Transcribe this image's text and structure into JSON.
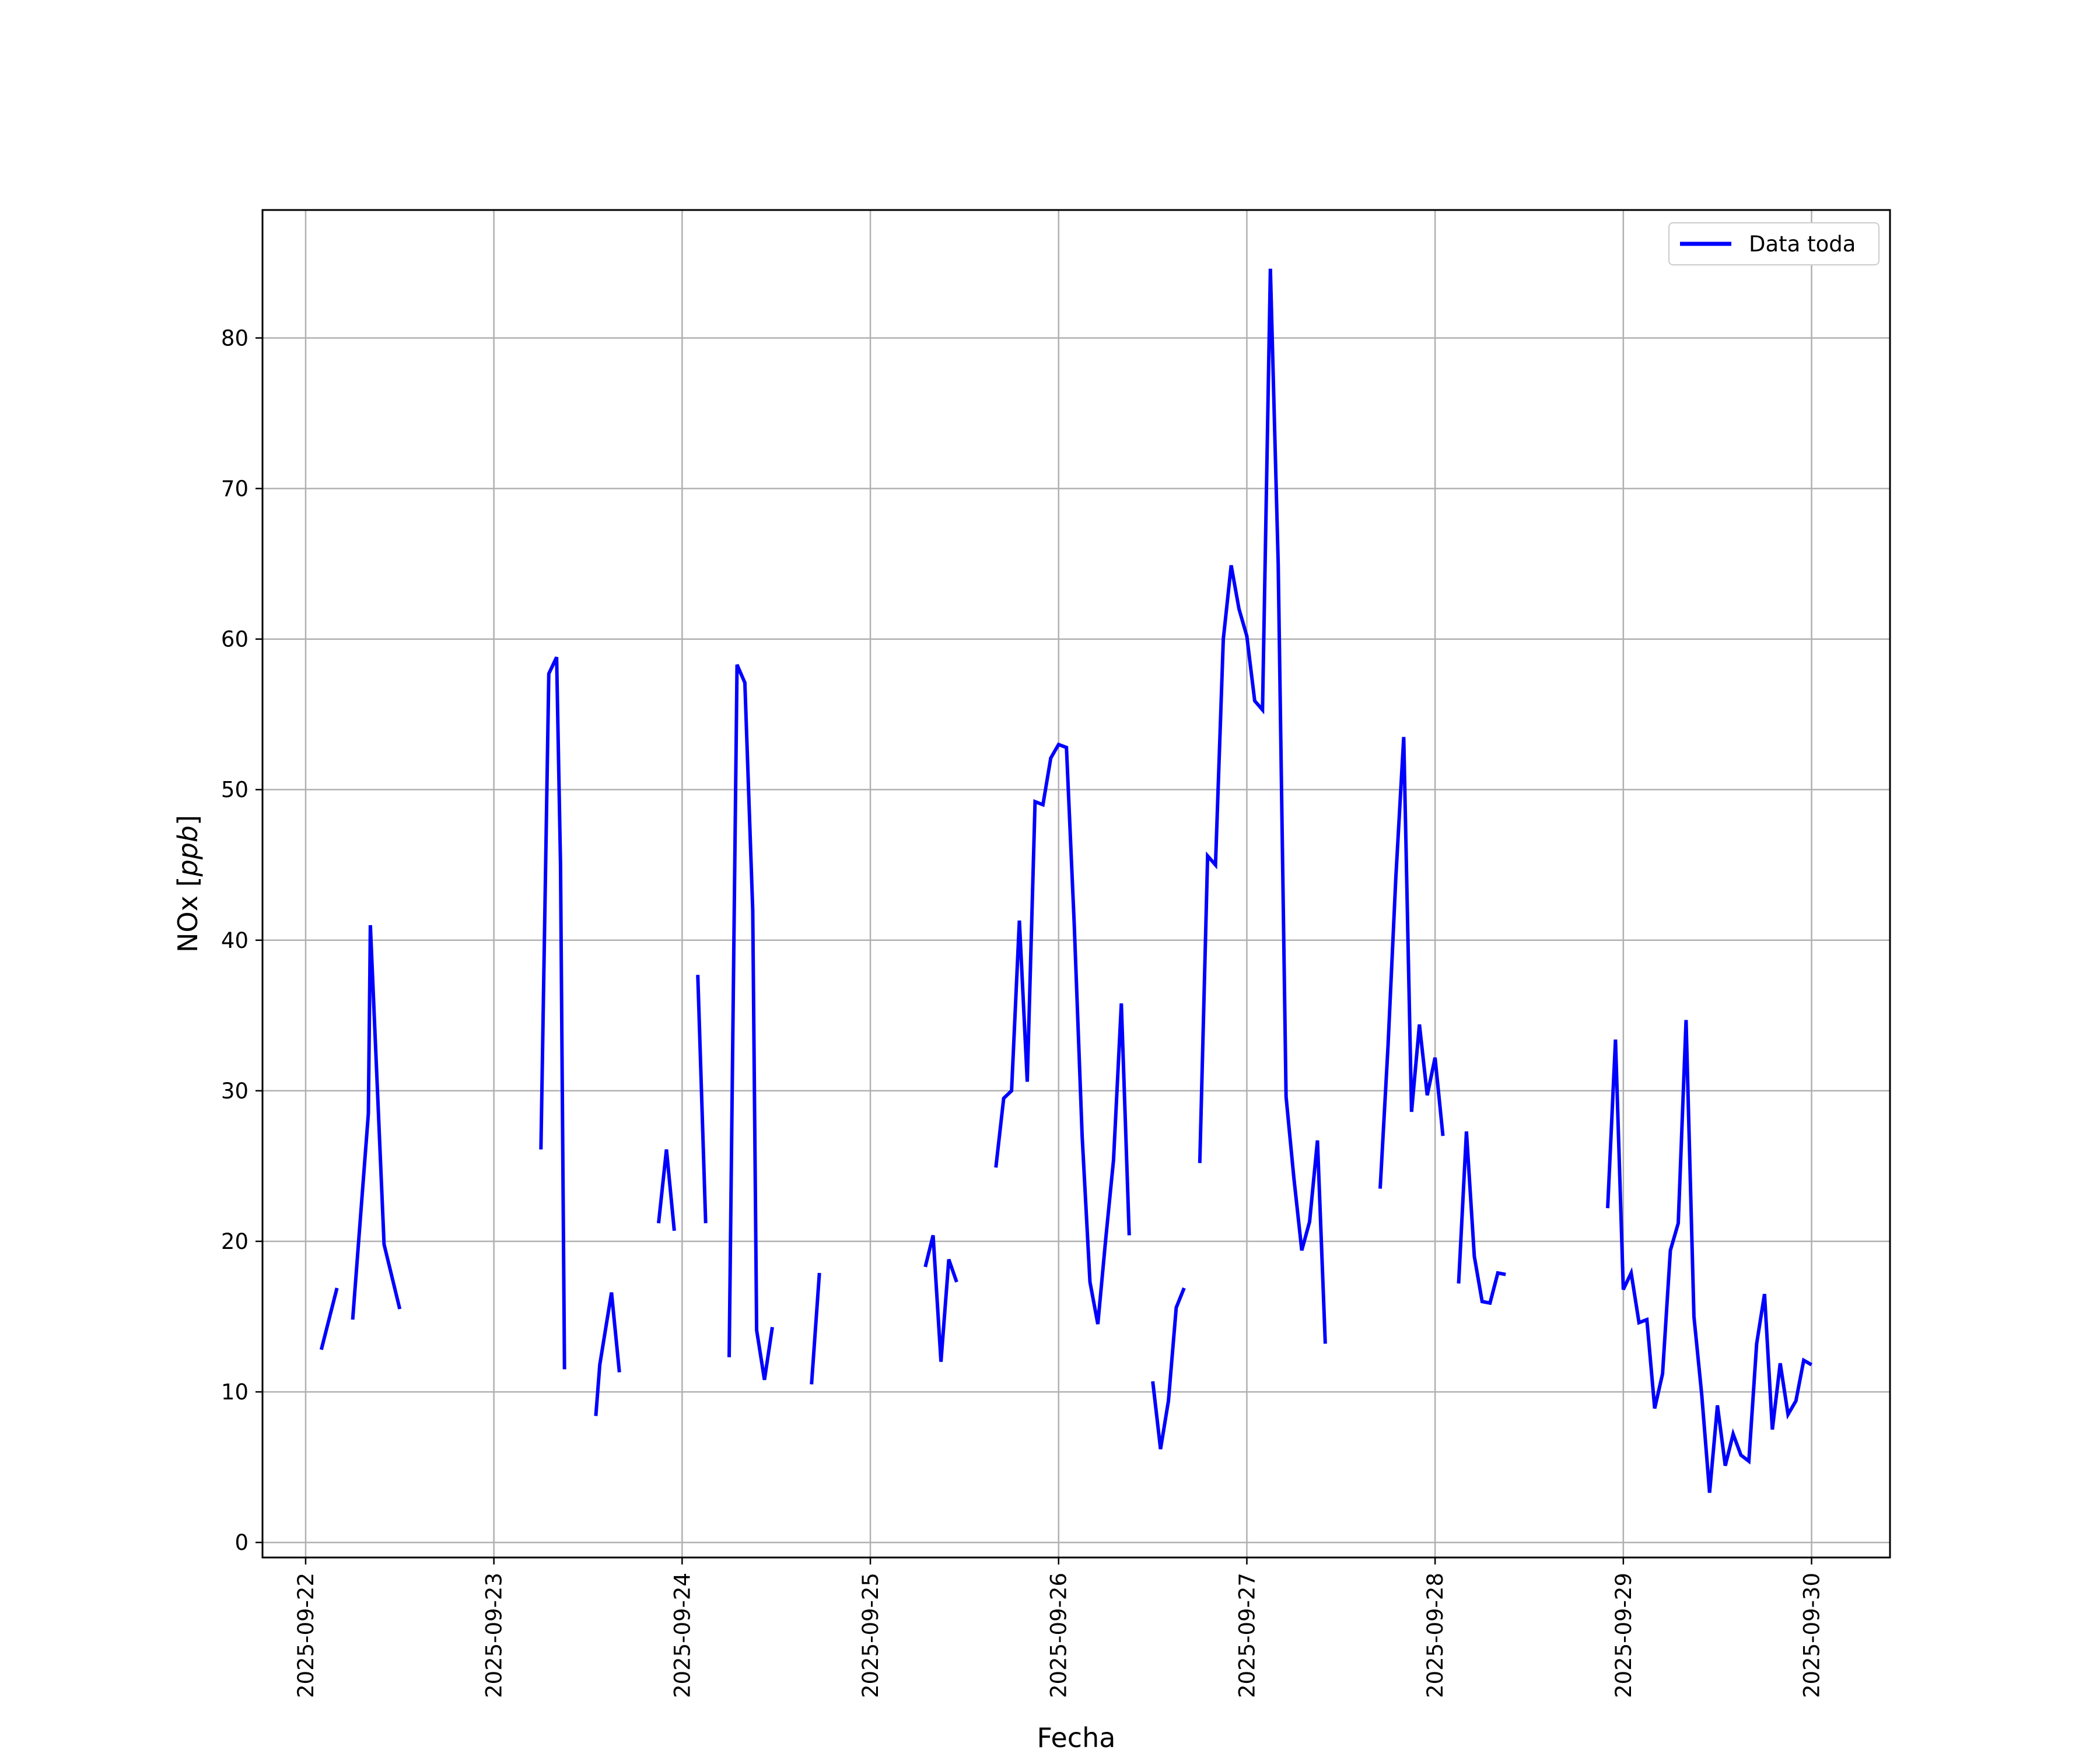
{
  "chart_data": {
    "type": "line",
    "xlabel": "Fecha",
    "ylabel": "NOx [ppb]",
    "ylabel_main": "NOx [",
    "ylabel_unit": "ppb",
    "ylabel_close": "]",
    "xlim": [
      "2025-09-21 18:30",
      "2025-09-30 10:00"
    ],
    "ylim": [
      -1,
      88.5
    ],
    "x_ticks": [
      "2025-09-22",
      "2025-09-23",
      "2025-09-24",
      "2025-09-25",
      "2025-09-26",
      "2025-09-27",
      "2025-09-28",
      "2025-09-29",
      "2025-09-30"
    ],
    "y_ticks": [
      0,
      10,
      20,
      30,
      40,
      50,
      60,
      70,
      80
    ],
    "grid": true,
    "legend_position": "top-right",
    "line_color": "#0000ff",
    "series": [
      {
        "name": "Data toda",
        "segments": [
          [
            [
              "2025-09-22 02:00",
              12.8
            ],
            [
              "2025-09-22 04:00",
              16.9
            ]
          ],
          [
            [
              "2025-09-22 06:00",
              14.8
            ],
            [
              "2025-09-22 08:00",
              28.5
            ],
            [
              "2025-09-22 08:15",
              41.0
            ],
            [
              "2025-09-22 10:00",
              19.8
            ],
            [
              "2025-09-22 12:00",
              15.5
            ]
          ],
          [
            [
              "2025-09-23 06:00",
              26.1
            ],
            [
              "2025-09-23 07:00",
              57.7
            ],
            [
              "2025-09-23 08:00",
              58.8
            ],
            [
              "2025-09-23 08:30",
              45.0
            ],
            [
              "2025-09-23 09:00",
              11.5
            ]
          ],
          [
            [
              "2025-09-23 13:00",
              8.4
            ],
            [
              "2025-09-23 13:30",
              11.8
            ],
            [
              "2025-09-23 15:00",
              16.6
            ],
            [
              "2025-09-23 16:00",
              11.3
            ]
          ],
          [
            [
              "2025-09-23 21:00",
              21.2
            ],
            [
              "2025-09-23 22:00",
              26.1
            ],
            [
              "2025-09-23 23:00",
              20.7
            ]
          ],
          [
            [
              "2025-09-24 02:00",
              37.7
            ],
            [
              "2025-09-24 03:00",
              21.2
            ]
          ],
          [
            [
              "2025-09-24 06:00",
              12.3
            ],
            [
              "2025-09-24 07:00",
              58.3
            ],
            [
              "2025-09-24 08:00",
              57.1
            ],
            [
              "2025-09-24 09:00",
              42.0
            ],
            [
              "2025-09-24 09:30",
              14.1
            ],
            [
              "2025-09-24 10:30",
              10.8
            ],
            [
              "2025-09-24 11:30",
              14.3
            ]
          ],
          [
            [
              "2025-09-24 16:30",
              10.5
            ],
            [
              "2025-09-24 17:30",
              17.9
            ]
          ],
          [
            [
              "2025-09-25 07:00",
              18.3
            ],
            [
              "2025-09-25 08:00",
              20.4
            ],
            [
              "2025-09-25 09:00",
              12.0
            ],
            [
              "2025-09-25 10:00",
              18.8
            ],
            [
              "2025-09-25 11:00",
              17.3
            ]
          ],
          [
            [
              "2025-09-25 16:00",
              24.9
            ],
            [
              "2025-09-25 17:00",
              29.5
            ],
            [
              "2025-09-25 18:00",
              30.0
            ],
            [
              "2025-09-25 19:00",
              41.3
            ],
            [
              "2025-09-25 20:00",
              30.6
            ],
            [
              "2025-09-25 21:00",
              49.2
            ],
            [
              "2025-09-25 22:00",
              49.0
            ],
            [
              "2025-09-25 23:00",
              52.1
            ],
            [
              "2025-09-26 00:00",
              53.0
            ],
            [
              "2025-09-26 01:00",
              52.8
            ],
            [
              "2025-09-26 02:00",
              41.0
            ],
            [
              "2025-09-26 03:00",
              27.0
            ],
            [
              "2025-09-26 04:00",
              17.3
            ],
            [
              "2025-09-26 05:00",
              14.5
            ],
            [
              "2025-09-26 06:00",
              20.1
            ],
            [
              "2025-09-26 07:00",
              25.4
            ],
            [
              "2025-09-26 08:00",
              35.8
            ],
            [
              "2025-09-26 09:00",
              20.4
            ]
          ],
          [
            [
              "2025-09-26 12:00",
              10.7
            ],
            [
              "2025-09-26 13:00",
              6.2
            ],
            [
              "2025-09-26 14:00",
              9.4
            ],
            [
              "2025-09-26 15:00",
              15.6
            ],
            [
              "2025-09-26 16:00",
              16.9
            ]
          ],
          [
            [
              "2025-09-26 18:00",
              25.2
            ],
            [
              "2025-09-26 19:00",
              45.6
            ],
            [
              "2025-09-26 20:00",
              45.0
            ],
            [
              "2025-09-26 21:00",
              60.0
            ],
            [
              "2025-09-26 22:00",
              64.9
            ],
            [
              "2025-09-26 23:00",
              62.0
            ],
            [
              "2025-09-27 00:00",
              60.2
            ],
            [
              "2025-09-27 01:00",
              55.9
            ],
            [
              "2025-09-27 02:00",
              55.3
            ],
            [
              "2025-09-27 03:00",
              84.6
            ],
            [
              "2025-09-27 04:00",
              65.0
            ],
            [
              "2025-09-27 05:00",
              29.6
            ],
            [
              "2025-09-27 06:00",
              24.2
            ],
            [
              "2025-09-27 07:00",
              19.4
            ],
            [
              "2025-09-27 08:00",
              21.3
            ],
            [
              "2025-09-27 09:00",
              26.7
            ],
            [
              "2025-09-27 10:00",
              13.2
            ]
          ],
          [
            [
              "2025-09-27 17:00",
              23.5
            ],
            [
              "2025-09-27 18:00",
              33.0
            ],
            [
              "2025-09-27 19:00",
              44.2
            ],
            [
              "2025-09-27 20:00",
              53.5
            ],
            [
              "2025-09-27 21:00",
              28.6
            ],
            [
              "2025-09-27 22:00",
              34.4
            ],
            [
              "2025-09-27 23:00",
              29.7
            ],
            [
              "2025-09-28 00:00",
              32.2
            ],
            [
              "2025-09-28 01:00",
              27.0
            ]
          ],
          [
            [
              "2025-09-28 03:00",
              17.2
            ],
            [
              "2025-09-28 04:00",
              27.3
            ],
            [
              "2025-09-28 05:00",
              19.0
            ],
            [
              "2025-09-28 06:00",
              16.0
            ],
            [
              "2025-09-28 07:00",
              15.9
            ],
            [
              "2025-09-28 08:00",
              17.9
            ],
            [
              "2025-09-28 09:00",
              17.8
            ]
          ],
          [
            [
              "2025-09-28 22:00",
              22.2
            ],
            [
              "2025-09-28 23:00",
              33.4
            ],
            [
              "2025-09-29 00:00",
              16.8
            ],
            [
              "2025-09-29 01:00",
              17.9
            ],
            [
              "2025-09-29 02:00",
              14.6
            ],
            [
              "2025-09-29 03:00",
              14.8
            ],
            [
              "2025-09-29 04:00",
              8.9
            ],
            [
              "2025-09-29 05:00",
              11.2
            ],
            [
              "2025-09-29 06:00",
              19.4
            ],
            [
              "2025-09-29 07:00",
              21.2
            ],
            [
              "2025-09-29 08:00",
              34.7
            ],
            [
              "2025-09-29 09:00",
              15.0
            ],
            [
              "2025-09-29 10:00",
              9.8
            ],
            [
              "2025-09-29 11:00",
              3.3
            ],
            [
              "2025-09-29 12:00",
              9.1
            ],
            [
              "2025-09-29 13:00",
              5.1
            ],
            [
              "2025-09-29 14:00",
              7.2
            ],
            [
              "2025-09-29 15:00",
              5.8
            ],
            [
              "2025-09-29 16:00",
              5.4
            ],
            [
              "2025-09-29 17:00",
              13.2
            ],
            [
              "2025-09-29 18:00",
              16.5
            ],
            [
              "2025-09-29 19:00",
              7.5
            ],
            [
              "2025-09-29 20:00",
              11.9
            ],
            [
              "2025-09-29 21:00",
              8.5
            ],
            [
              "2025-09-29 22:00",
              9.4
            ],
            [
              "2025-09-29 23:00",
              12.1
            ],
            [
              "2025-09-30 00:00",
              11.8
            ]
          ]
        ]
      }
    ]
  }
}
